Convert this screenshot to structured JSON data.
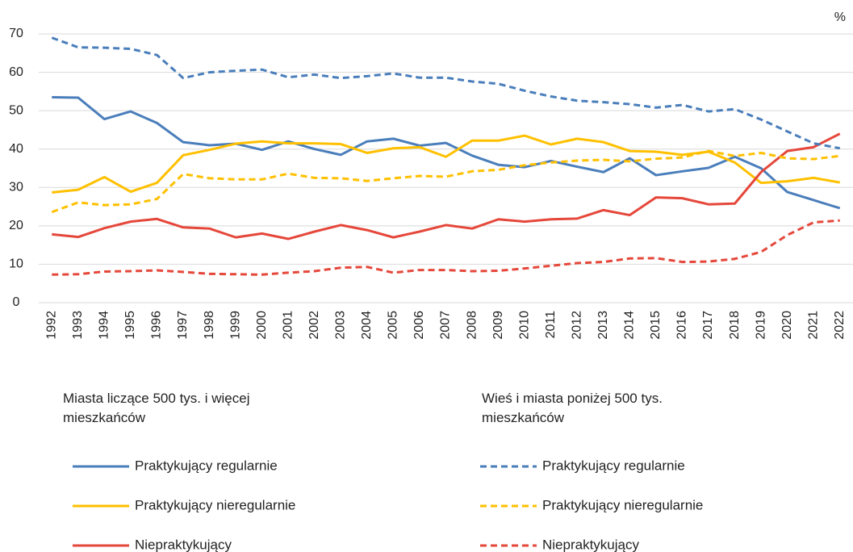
{
  "chart_data": {
    "type": "line",
    "unit": "%",
    "categories": [
      "1992",
      "1993",
      "1994",
      "1995",
      "1996",
      "1997",
      "1998",
      "1999",
      "2000",
      "2001",
      "2002",
      "2003",
      "2004",
      "2005",
      "2006",
      "2007",
      "2008",
      "2009",
      "2010",
      "2011",
      "2012",
      "2013",
      "2014",
      "2015",
      "2016",
      "2017",
      "2018",
      "2019",
      "2020",
      "2021",
      "2022"
    ],
    "ylim": [
      0,
      70
    ],
    "yticks": [
      0,
      10,
      20,
      30,
      40,
      50,
      60,
      70
    ],
    "grid": true,
    "legend_groups": [
      "Miasta liczące 500 tys. i więcej mieszkańców",
      "Wieś i miasta poniżej 500 tys. mieszkańców"
    ],
    "series": [
      {
        "name": "Praktykujący regularnie",
        "group": 0,
        "color": "#4a7ebb",
        "dashed": false,
        "values": [
          53.5,
          53.4,
          47.8,
          49.8,
          46.8,
          41.8,
          41,
          41.4,
          39.8,
          42,
          40,
          38.5,
          42,
          42.7,
          40.9,
          41.6,
          38.3,
          35.9,
          35.3,
          36.9,
          35.4,
          34,
          37.6,
          33.2,
          34.2,
          35.1,
          38,
          35,
          28.8,
          26.7,
          24.6
        ]
      },
      {
        "name": "Praktykujący nieregularnie",
        "group": 0,
        "color": "#ffc000",
        "dashed": false,
        "values": [
          28.7,
          29.4,
          32.7,
          28.9,
          31.2,
          38.4,
          39.8,
          41.4,
          42,
          41.5,
          41.5,
          41.3,
          39,
          40.2,
          40.5,
          38,
          42.2,
          42.2,
          43.5,
          41.2,
          42.7,
          41.8,
          39.5,
          39.3,
          38.5,
          39.3,
          36.5,
          31.2,
          31.6,
          32.5,
          31.3
        ]
      },
      {
        "name": "Niepraktykujący",
        "group": 0,
        "color": "#e5473a",
        "dashed": false,
        "values": [
          17.8,
          17.1,
          19.4,
          21.1,
          21.8,
          19.6,
          19.3,
          17,
          18,
          16.6,
          18.5,
          20.2,
          18.9,
          17,
          18.5,
          20.2,
          19.3,
          21.7,
          21.1,
          21.7,
          21.9,
          24.1,
          22.8,
          27.4,
          27.2,
          25.6,
          25.8,
          34,
          39.5,
          40.5,
          44
        ]
      },
      {
        "name": "Praktykujący regularnie",
        "group": 1,
        "color": "#4a7ebb",
        "dashed": true,
        "values": [
          69,
          66.5,
          66.4,
          66.1,
          64.5,
          58.5,
          60,
          60.4,
          60.7,
          58.7,
          59.4,
          58.5,
          59,
          59.7,
          58.6,
          58.6,
          57.6,
          57,
          55.2,
          53.7,
          52.6,
          52.2,
          51.7,
          50.8,
          51.5,
          49.8,
          50.4,
          47.7,
          44.6,
          41.5,
          40.2
        ]
      },
      {
        "name": "Praktykujący nieregularnie",
        "group": 1,
        "color": "#ffc000",
        "dashed": true,
        "values": [
          23.6,
          26.1,
          25.4,
          25.6,
          27,
          33.5,
          32.4,
          32.1,
          32.1,
          33.6,
          32.5,
          32.4,
          31.7,
          32.4,
          33,
          32.8,
          34.2,
          34.6,
          35.8,
          36.5,
          37,
          37.2,
          36.8,
          37.5,
          37.8,
          39.5,
          38.2,
          39,
          37.6,
          37.4,
          38.2
        ]
      },
      {
        "name": "Niepraktykujący",
        "group": 1,
        "color": "#e5473a",
        "dashed": true,
        "values": [
          7.3,
          7.4,
          8.1,
          8.2,
          8.4,
          8,
          7.5,
          7.4,
          7.3,
          7.8,
          8.2,
          9.1,
          9.3,
          7.8,
          8.5,
          8.5,
          8.2,
          8.3,
          8.9,
          9.6,
          10.3,
          10.6,
          11.5,
          11.6,
          10.6,
          10.7,
          11.4,
          13.2,
          17.6,
          20.9,
          21.4
        ]
      }
    ]
  }
}
